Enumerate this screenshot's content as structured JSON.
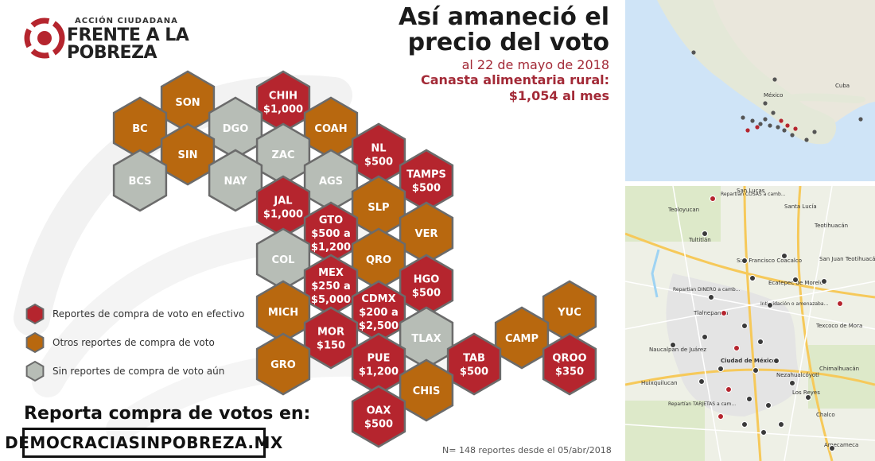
{
  "logo": {
    "small": "ACCIÓN CIUDADANA",
    "line1": "FRENTE A LA",
    "line2": "POBREZA",
    "accent": "#b5252e"
  },
  "title": {
    "line1": "Así amaneció el",
    "line2": "precio del voto",
    "date": "al 22 de mayo de 2018",
    "canasta": "Canasta alimentaria rural:",
    "price": "$1,054 al mes"
  },
  "colors": {
    "efectivo": "#b5252e",
    "otros": "#b8680f",
    "sin": "#b7bdb6"
  },
  "legend": [
    {
      "key": "efectivo",
      "label": "Reportes de compra de voto en efectivo"
    },
    {
      "key": "otros",
      "label": "Otros reportes de compra de voto"
    },
    {
      "key": "sin",
      "label": "Sin reportes de compra de voto aún"
    }
  ],
  "states": [
    {
      "lines": [
        "SON"
      ],
      "cat": "otros"
    },
    {
      "lines": [
        "CHIH",
        "$1,000"
      ],
      "cat": "efectivo"
    },
    {
      "lines": [
        "BC"
      ],
      "cat": "otros"
    },
    {
      "lines": [
        "DGO"
      ],
      "cat": "sin"
    },
    {
      "lines": [
        "COAH"
      ],
      "cat": "otros"
    },
    {
      "lines": [
        "SIN"
      ],
      "cat": "otros"
    },
    {
      "lines": [
        "ZAC"
      ],
      "cat": "sin"
    },
    {
      "lines": [
        "NL",
        "$500"
      ],
      "cat": "efectivo"
    },
    {
      "lines": [
        "BCS"
      ],
      "cat": "sin"
    },
    {
      "lines": [
        "NAY"
      ],
      "cat": "sin"
    },
    {
      "lines": [
        "AGS"
      ],
      "cat": "sin"
    },
    {
      "lines": [
        "TAMPS",
        "$500"
      ],
      "cat": "efectivo"
    },
    {
      "lines": [
        "JAL",
        "$1,000"
      ],
      "cat": "efectivo"
    },
    {
      "lines": [
        "SLP"
      ],
      "cat": "otros"
    },
    {
      "lines": [
        "GTO",
        "$500 a",
        "$1,200"
      ],
      "cat": "efectivo"
    },
    {
      "lines": [
        "VER"
      ],
      "cat": "otros"
    },
    {
      "lines": [
        "COL"
      ],
      "cat": "sin"
    },
    {
      "lines": [
        "QRO"
      ],
      "cat": "otros"
    },
    {
      "lines": [
        "MEX",
        "$250 a",
        "$5,000"
      ],
      "cat": "efectivo"
    },
    {
      "lines": [
        "HGO",
        "$500"
      ],
      "cat": "efectivo"
    },
    {
      "lines": [
        "CDMX",
        "$200 a",
        "$2,500"
      ],
      "cat": "efectivo"
    },
    {
      "lines": [
        "YUC"
      ],
      "cat": "otros"
    },
    {
      "lines": [
        "MICH"
      ],
      "cat": "otros"
    },
    {
      "lines": [
        "TLAX"
      ],
      "cat": "sin"
    },
    {
      "lines": [
        "CAMP"
      ],
      "cat": "otros"
    },
    {
      "lines": [
        "MOR",
        "$150"
      ],
      "cat": "efectivo"
    },
    {
      "lines": [
        "TAB",
        "$500"
      ],
      "cat": "efectivo"
    },
    {
      "lines": [
        "QROO",
        "$350"
      ],
      "cat": "efectivo"
    },
    {
      "lines": [
        "PUE",
        "$1,200"
      ],
      "cat": "efectivo"
    },
    {
      "lines": [
        "GRO"
      ],
      "cat": "otros"
    },
    {
      "lines": [
        "CHIS"
      ],
      "cat": "otros"
    },
    {
      "lines": [
        "OAX",
        "$500"
      ],
      "cat": "efectivo"
    }
  ],
  "report": {
    "label": "Reporta compra de votos en:",
    "url": "DEMOCRACIASINPOBREZA.MX"
  },
  "footnote": "N= 148 reportes desde el 05/abr/2018",
  "map_top": {
    "labels": [
      "México",
      "Cuba"
    ]
  },
  "map_bottom": {
    "labels": [
      "San Lucas",
      "Teoloyucan",
      "Santa Lucía",
      "Tultitlán",
      "Teotihuacán",
      "San Francisco Coacalco",
      "San Juan Teotihuacán",
      "Ecatepec de Morelos",
      "Tlalnepantla",
      "Ciudad de México",
      "Texcoco de Mora",
      "Naucalpan de Juárez",
      "Nezahualcóyotl",
      "Huixquilucan",
      "Chimalhuacán",
      "Los Reyes",
      "Amecameca",
      "Chalco"
    ],
    "pins": [
      "Repartían COSAS a camb...",
      "Repartían DINERO a camb...",
      "Repartían TARJETAS a cam...",
      "Intimidación o amenazaba..."
    ]
  }
}
